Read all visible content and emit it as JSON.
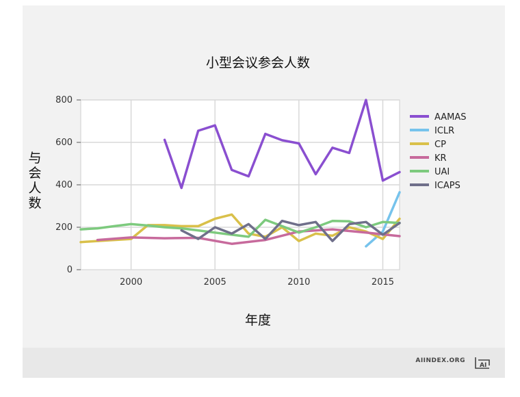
{
  "chart_data": {
    "type": "line",
    "title": "小型会议参会人数",
    "xlabel": "年度",
    "ylabel": "与会人数",
    "xlim": [
      1997,
      2016
    ],
    "ylim": [
      0,
      800
    ],
    "xticks": [
      2000,
      2005,
      2010,
      2015
    ],
    "yticks": [
      0,
      200,
      400,
      600,
      800
    ],
    "grid": true,
    "legend_position": "right",
    "series": [
      {
        "name": "AAMAS",
        "color": "#8a4fd0",
        "x": [
          2002,
          2003,
          2004,
          2005,
          2006,
          2007,
          2008,
          2009,
          2010,
          2011,
          2012,
          2013,
          2014,
          2015,
          2016
        ],
        "values": [
          612,
          385,
          655,
          680,
          470,
          440,
          640,
          610,
          595,
          450,
          575,
          550,
          800,
          420,
          460
        ]
      },
      {
        "name": "ICLR",
        "color": "#76c3ec",
        "x": [
          2014,
          2015,
          2016
        ],
        "values": [
          110,
          180,
          365
        ]
      },
      {
        "name": "CP",
        "color": "#d9c04a",
        "x": [
          1997,
          1998,
          1999,
          2000,
          2001,
          2002,
          2003,
          2004,
          2005,
          2006,
          2007,
          2008,
          2009,
          2010,
          2011,
          2012,
          2013,
          2014,
          2015,
          2016
        ],
        "values": [
          130,
          135,
          140,
          145,
          210,
          210,
          205,
          205,
          240,
          260,
          170,
          155,
          200,
          135,
          170,
          160,
          200,
          180,
          145,
          240
        ]
      },
      {
        "name": "KR",
        "color": "#c76a9c",
        "x": [
          1998,
          2000,
          2002,
          2004,
          2006,
          2008,
          2010,
          2012,
          2014,
          2016
        ],
        "values": [
          140,
          152,
          148,
          150,
          122,
          140,
          180,
          190,
          175,
          158
        ]
      },
      {
        "name": "UAI",
        "color": "#7dca7e",
        "x": [
          1997,
          1998,
          1999,
          2000,
          2001,
          2002,
          2003,
          2004,
          2005,
          2006,
          2007,
          2008,
          2009,
          2010,
          2011,
          2012,
          2013,
          2014,
          2015,
          2016
        ],
        "values": [
          190,
          195,
          205,
          215,
          208,
          200,
          195,
          185,
          175,
          165,
          155,
          235,
          205,
          175,
          200,
          230,
          228,
          200,
          225,
          220
        ]
      },
      {
        "name": "ICAPS",
        "color": "#6f6f8a",
        "x": [
          2003,
          2004,
          2005,
          2006,
          2007,
          2008,
          2009,
          2010,
          2011,
          2012,
          2013,
          2014,
          2015,
          2016
        ],
        "values": [
          185,
          145,
          200,
          170,
          215,
          145,
          230,
          210,
          225,
          135,
          215,
          225,
          165,
          220
        ]
      }
    ]
  },
  "footer": {
    "brand": "AIINDEX.ORG",
    "logo_text": "AI"
  }
}
